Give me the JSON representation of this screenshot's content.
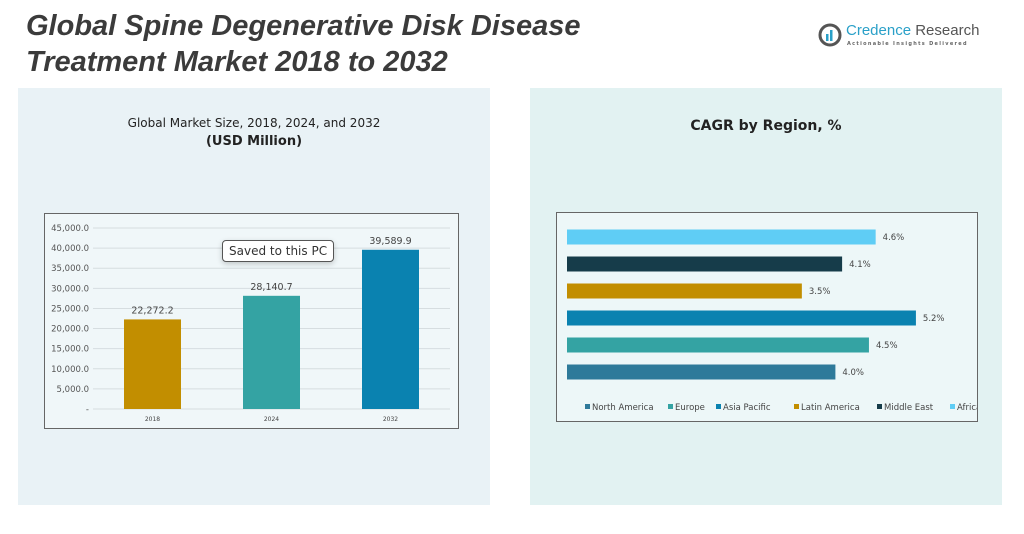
{
  "header": {
    "title_line1": "Global Spine Degenerative Disk Disease",
    "title_line2": "Treatment Market 2018 to 2032"
  },
  "logo": {
    "name_part1": "Credence",
    "name_part2": "Research",
    "tagline": "Actionable Insights Delivered"
  },
  "tooltip": "Saved to this PC",
  "chart_data": [
    {
      "type": "bar",
      "title": "Global Market Size, 2018, 2024, and 2032",
      "subtitle": "(USD Million)",
      "categories": [
        "2018",
        "2024",
        "2032"
      ],
      "values": [
        22272.2,
        28140.7,
        39589.9
      ],
      "value_labels": [
        "22,272.2",
        "28,140.7",
        "39,589.9"
      ],
      "colors": [
        "#c28e00",
        "#34a3a3",
        "#0a82b0"
      ],
      "ylim": [
        0,
        45000
      ],
      "yticks": [
        "-",
        "5,000.0",
        "10,000.0",
        "15,000.0",
        "20,000.0",
        "25,000.0",
        "30,000.0",
        "35,000.0",
        "40,000.0",
        "45,000.0"
      ],
      "grid": true
    },
    {
      "type": "bar",
      "orientation": "horizontal",
      "title": "CAGR by Region, %",
      "categories": [
        "North America",
        "Europe",
        "Asia Pacific",
        "Latin America",
        "Middle East",
        "Africa"
      ],
      "values": [
        4.0,
        4.5,
        5.2,
        3.5,
        4.1,
        4.6
      ],
      "value_labels": [
        "4.0%",
        "4.5%",
        "5.2%",
        "3.5%",
        "4.1%",
        "4.6%"
      ],
      "colors": [
        "#2e7a9a",
        "#34a3a3",
        "#0a82b0",
        "#c28e00",
        "#163c4a",
        "#5fcdf5"
      ],
      "legend": "bottom"
    }
  ]
}
